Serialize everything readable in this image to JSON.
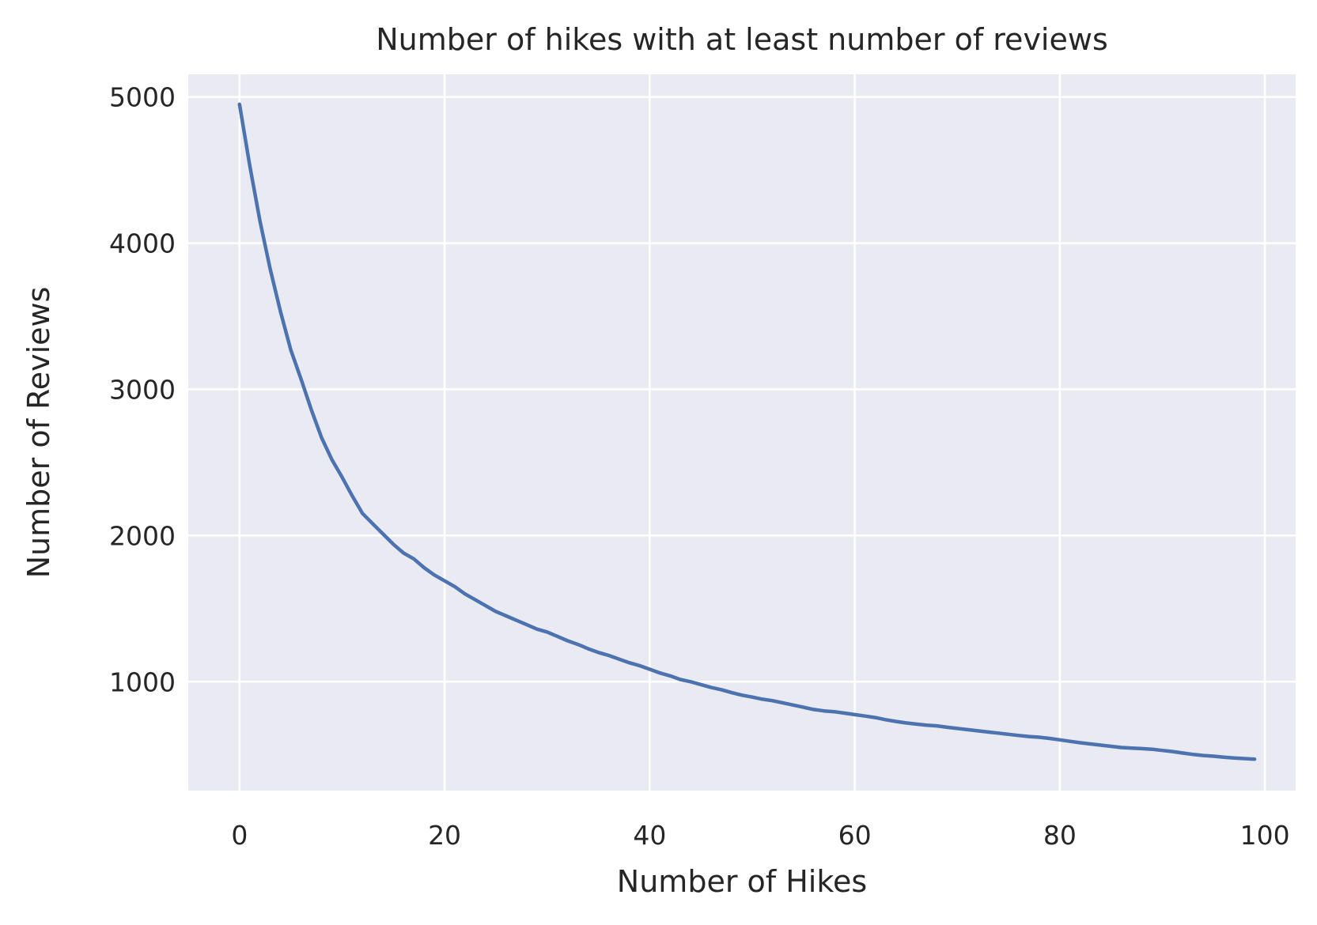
{
  "chart_data": {
    "type": "line",
    "title": "Number of hikes with at least number of reviews",
    "xlabel": "Number of Hikes",
    "ylabel": "Number of Reviews",
    "xlim": [
      -5,
      103
    ],
    "ylim": [
      255,
      5155
    ],
    "xticks": [
      0,
      20,
      40,
      60,
      80,
      100
    ],
    "yticks": [
      1000,
      2000,
      3000,
      4000,
      5000
    ],
    "grid": true,
    "legend": "none",
    "colors": {
      "background": "#eaeaf2",
      "grid": "#ffffff",
      "line": "#4c72b0",
      "text": "#262626"
    },
    "series": [
      {
        "x": [
          0,
          1,
          2,
          3,
          4,
          5,
          6,
          7,
          8,
          9,
          10,
          11,
          12,
          13,
          14,
          15,
          16,
          17,
          18,
          19,
          20,
          21,
          22,
          23,
          24,
          25,
          26,
          27,
          28,
          29,
          30,
          31,
          32,
          33,
          34,
          35,
          36,
          37,
          38,
          39,
          40,
          41,
          42,
          43,
          44,
          45,
          46,
          47,
          48,
          49,
          50,
          51,
          52,
          53,
          54,
          55,
          56,
          57,
          58,
          59,
          60,
          61,
          62,
          63,
          64,
          65,
          66,
          67,
          68,
          69,
          70,
          71,
          72,
          73,
          74,
          75,
          76,
          77,
          78,
          79,
          80,
          81,
          82,
          83,
          84,
          85,
          86,
          87,
          88,
          89,
          90,
          91,
          92,
          93,
          94,
          95,
          96,
          97,
          98,
          99
        ],
        "y": [
          4950,
          4530,
          4150,
          3820,
          3530,
          3270,
          3070,
          2860,
          2670,
          2520,
          2400,
          2270,
          2150,
          2080,
          2010,
          1940,
          1880,
          1840,
          1780,
          1730,
          1690,
          1650,
          1600,
          1560,
          1520,
          1480,
          1450,
          1420,
          1390,
          1360,
          1340,
          1310,
          1280,
          1255,
          1225,
          1200,
          1180,
          1155,
          1130,
          1110,
          1085,
          1060,
          1040,
          1015,
          1000,
          980,
          960,
          945,
          925,
          908,
          895,
          880,
          870,
          855,
          840,
          825,
          810,
          800,
          795,
          785,
          775,
          765,
          755,
          740,
          728,
          718,
          710,
          703,
          698,
          688,
          680,
          672,
          664,
          656,
          648,
          640,
          632,
          625,
          620,
          612,
          602,
          592,
          582,
          574,
          566,
          558,
          550,
          546,
          542,
          538,
          530,
          522,
          512,
          502,
          495,
          490,
          484,
          478,
          474,
          470
        ]
      }
    ]
  }
}
